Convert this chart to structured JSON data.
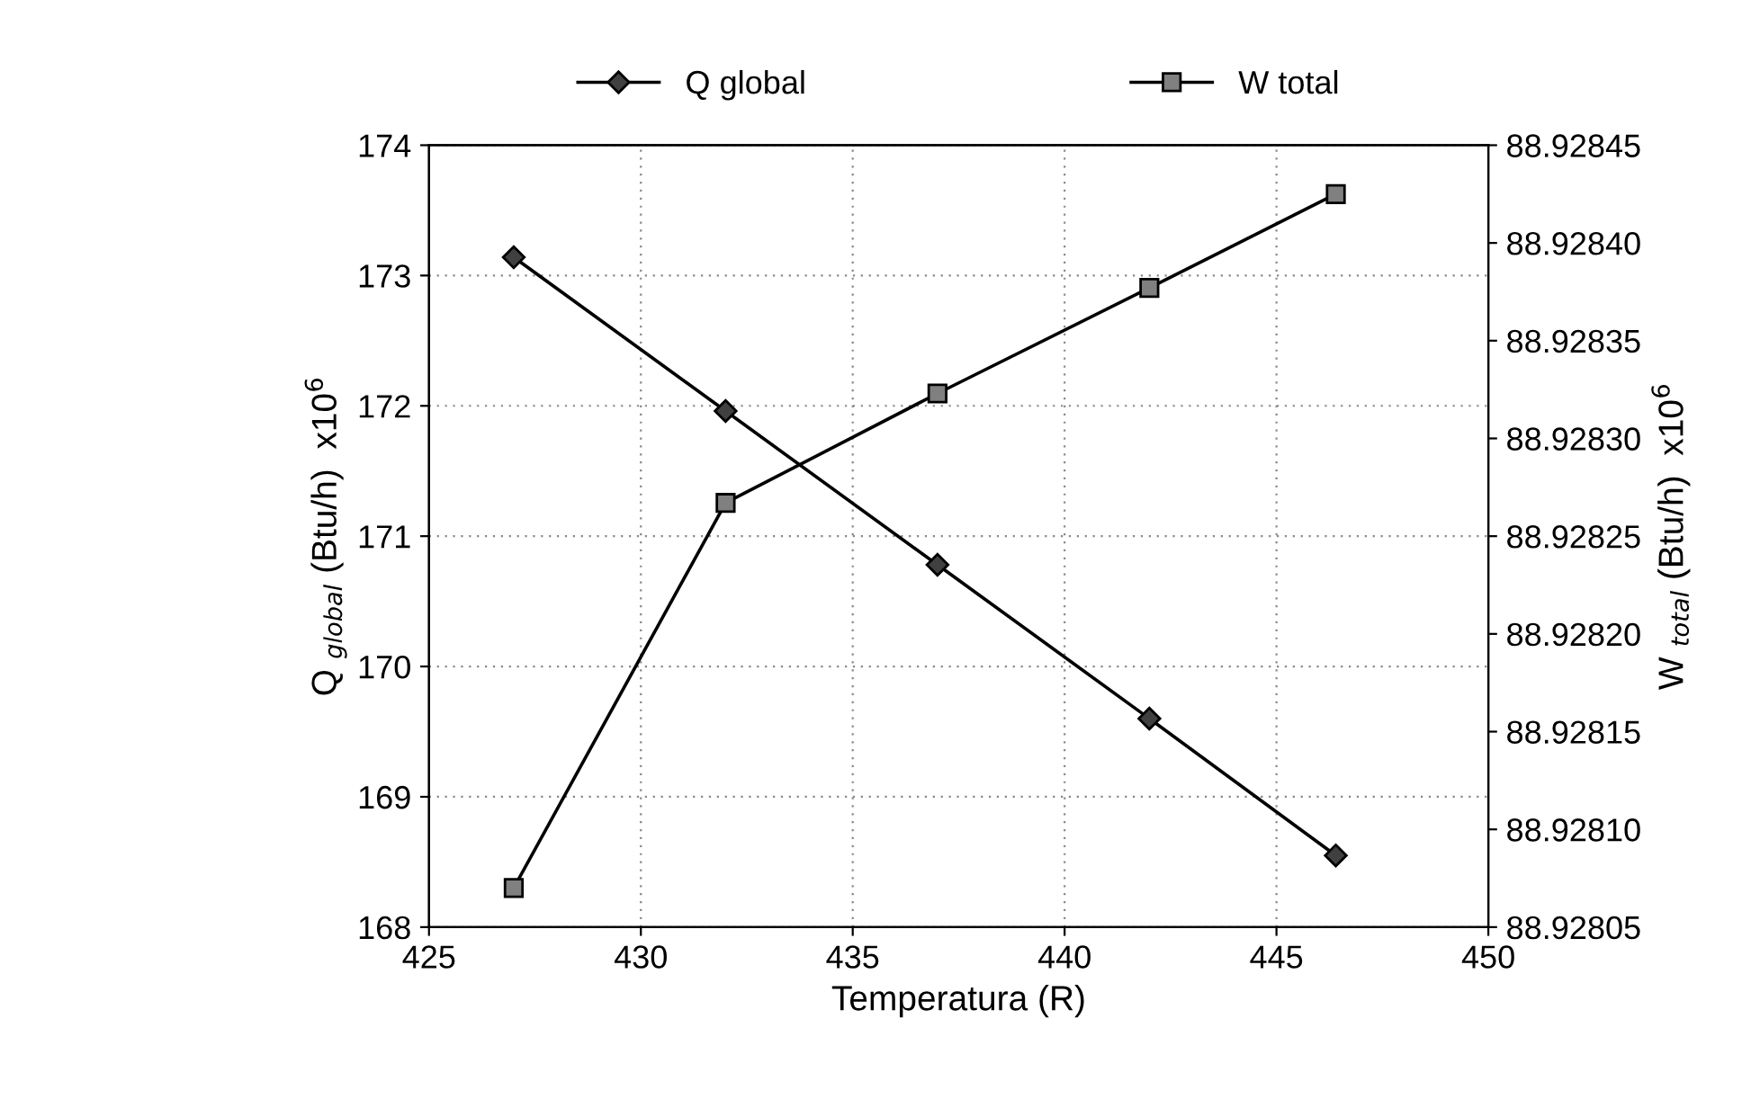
{
  "chart_data": {
    "type": "line",
    "xlabel": "Temperatura (R)",
    "ylabel": "Q $_{global}$ (Btu/h)  x10$^{6}$",
    "y2label": "W $_{total}$ (Btu/h)  x10$^{6}$",
    "xlim": [
      425,
      450
    ],
    "xticks": [
      425,
      430,
      435,
      440,
      445,
      450
    ],
    "ylim": [
      168,
      174
    ],
    "yticks": [
      168,
      169,
      170,
      171,
      172,
      173,
      174
    ],
    "y2lim": [
      88.92805,
      88.92845
    ],
    "y2ticks": [
      {
        "value": 88.92805,
        "label": "88.92805"
      },
      {
        "value": 88.9281,
        "label": "88.92810"
      },
      {
        "value": 88.92815,
        "label": "88.92815"
      },
      {
        "value": 88.9282,
        "label": "88.92820"
      },
      {
        "value": 88.92825,
        "label": "88.92825"
      },
      {
        "value": 88.9283,
        "label": "88.92830"
      },
      {
        "value": 88.92835,
        "label": "88.92835"
      },
      {
        "value": 88.9284,
        "label": "88.92840"
      },
      {
        "value": 88.92845,
        "label": "88.92845"
      }
    ],
    "x": [
      427,
      432,
      437,
      442,
      446.4
    ],
    "grid": true,
    "legend": "top",
    "line_style": "solid",
    "series": [
      {
        "name": "Q global",
        "color": "#404040",
        "marker": "diamond",
        "values": [
          173.14,
          171.96,
          170.78,
          169.6,
          168.55
        ]
      },
      {
        "name": "W total",
        "color": "#808080",
        "marker": "square",
        "axis": "y2",
        "values": [
          88.92807,
          88.928267,
          88.928323,
          88.928377,
          88.928425
        ]
      }
    ]
  }
}
